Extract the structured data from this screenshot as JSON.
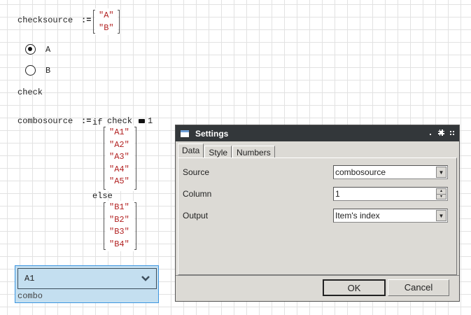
{
  "worksheet": {
    "checksource_name": "checksource",
    "assign": ":=",
    "checksource_values": [
      "\"A\"",
      "\"B\""
    ],
    "radios": [
      {
        "label": "A",
        "selected": true
      },
      {
        "label": "B",
        "selected": false
      }
    ],
    "check_label": "check",
    "combosource_name": "combosource",
    "if_kw": "if",
    "cond_var": "check",
    "cond_op": "=",
    "cond_val": "1",
    "a_values": [
      "\"A1\"",
      "\"A2\"",
      "\"A3\"",
      "\"A4\"",
      "\"A5\""
    ],
    "else_kw": "else",
    "b_values": [
      "\"B1\"",
      "\"B2\"",
      "\"B3\"",
      "\"B4\""
    ],
    "combo": {
      "value": "A1",
      "name": "combo",
      "icon": "chevron-down-icon"
    }
  },
  "dialog": {
    "title": "Settings",
    "tabs": [
      "Data",
      "Style",
      "Numbers"
    ],
    "active_tab": "Data",
    "fields": [
      {
        "label": "Source",
        "value": "combosource",
        "type": "dropdown"
      },
      {
        "label": "Column",
        "value": "1",
        "type": "spinner"
      },
      {
        "label": "Output",
        "value": "Item's index",
        "type": "dropdown"
      }
    ],
    "ok": "OK",
    "cancel": "Cancel"
  }
}
